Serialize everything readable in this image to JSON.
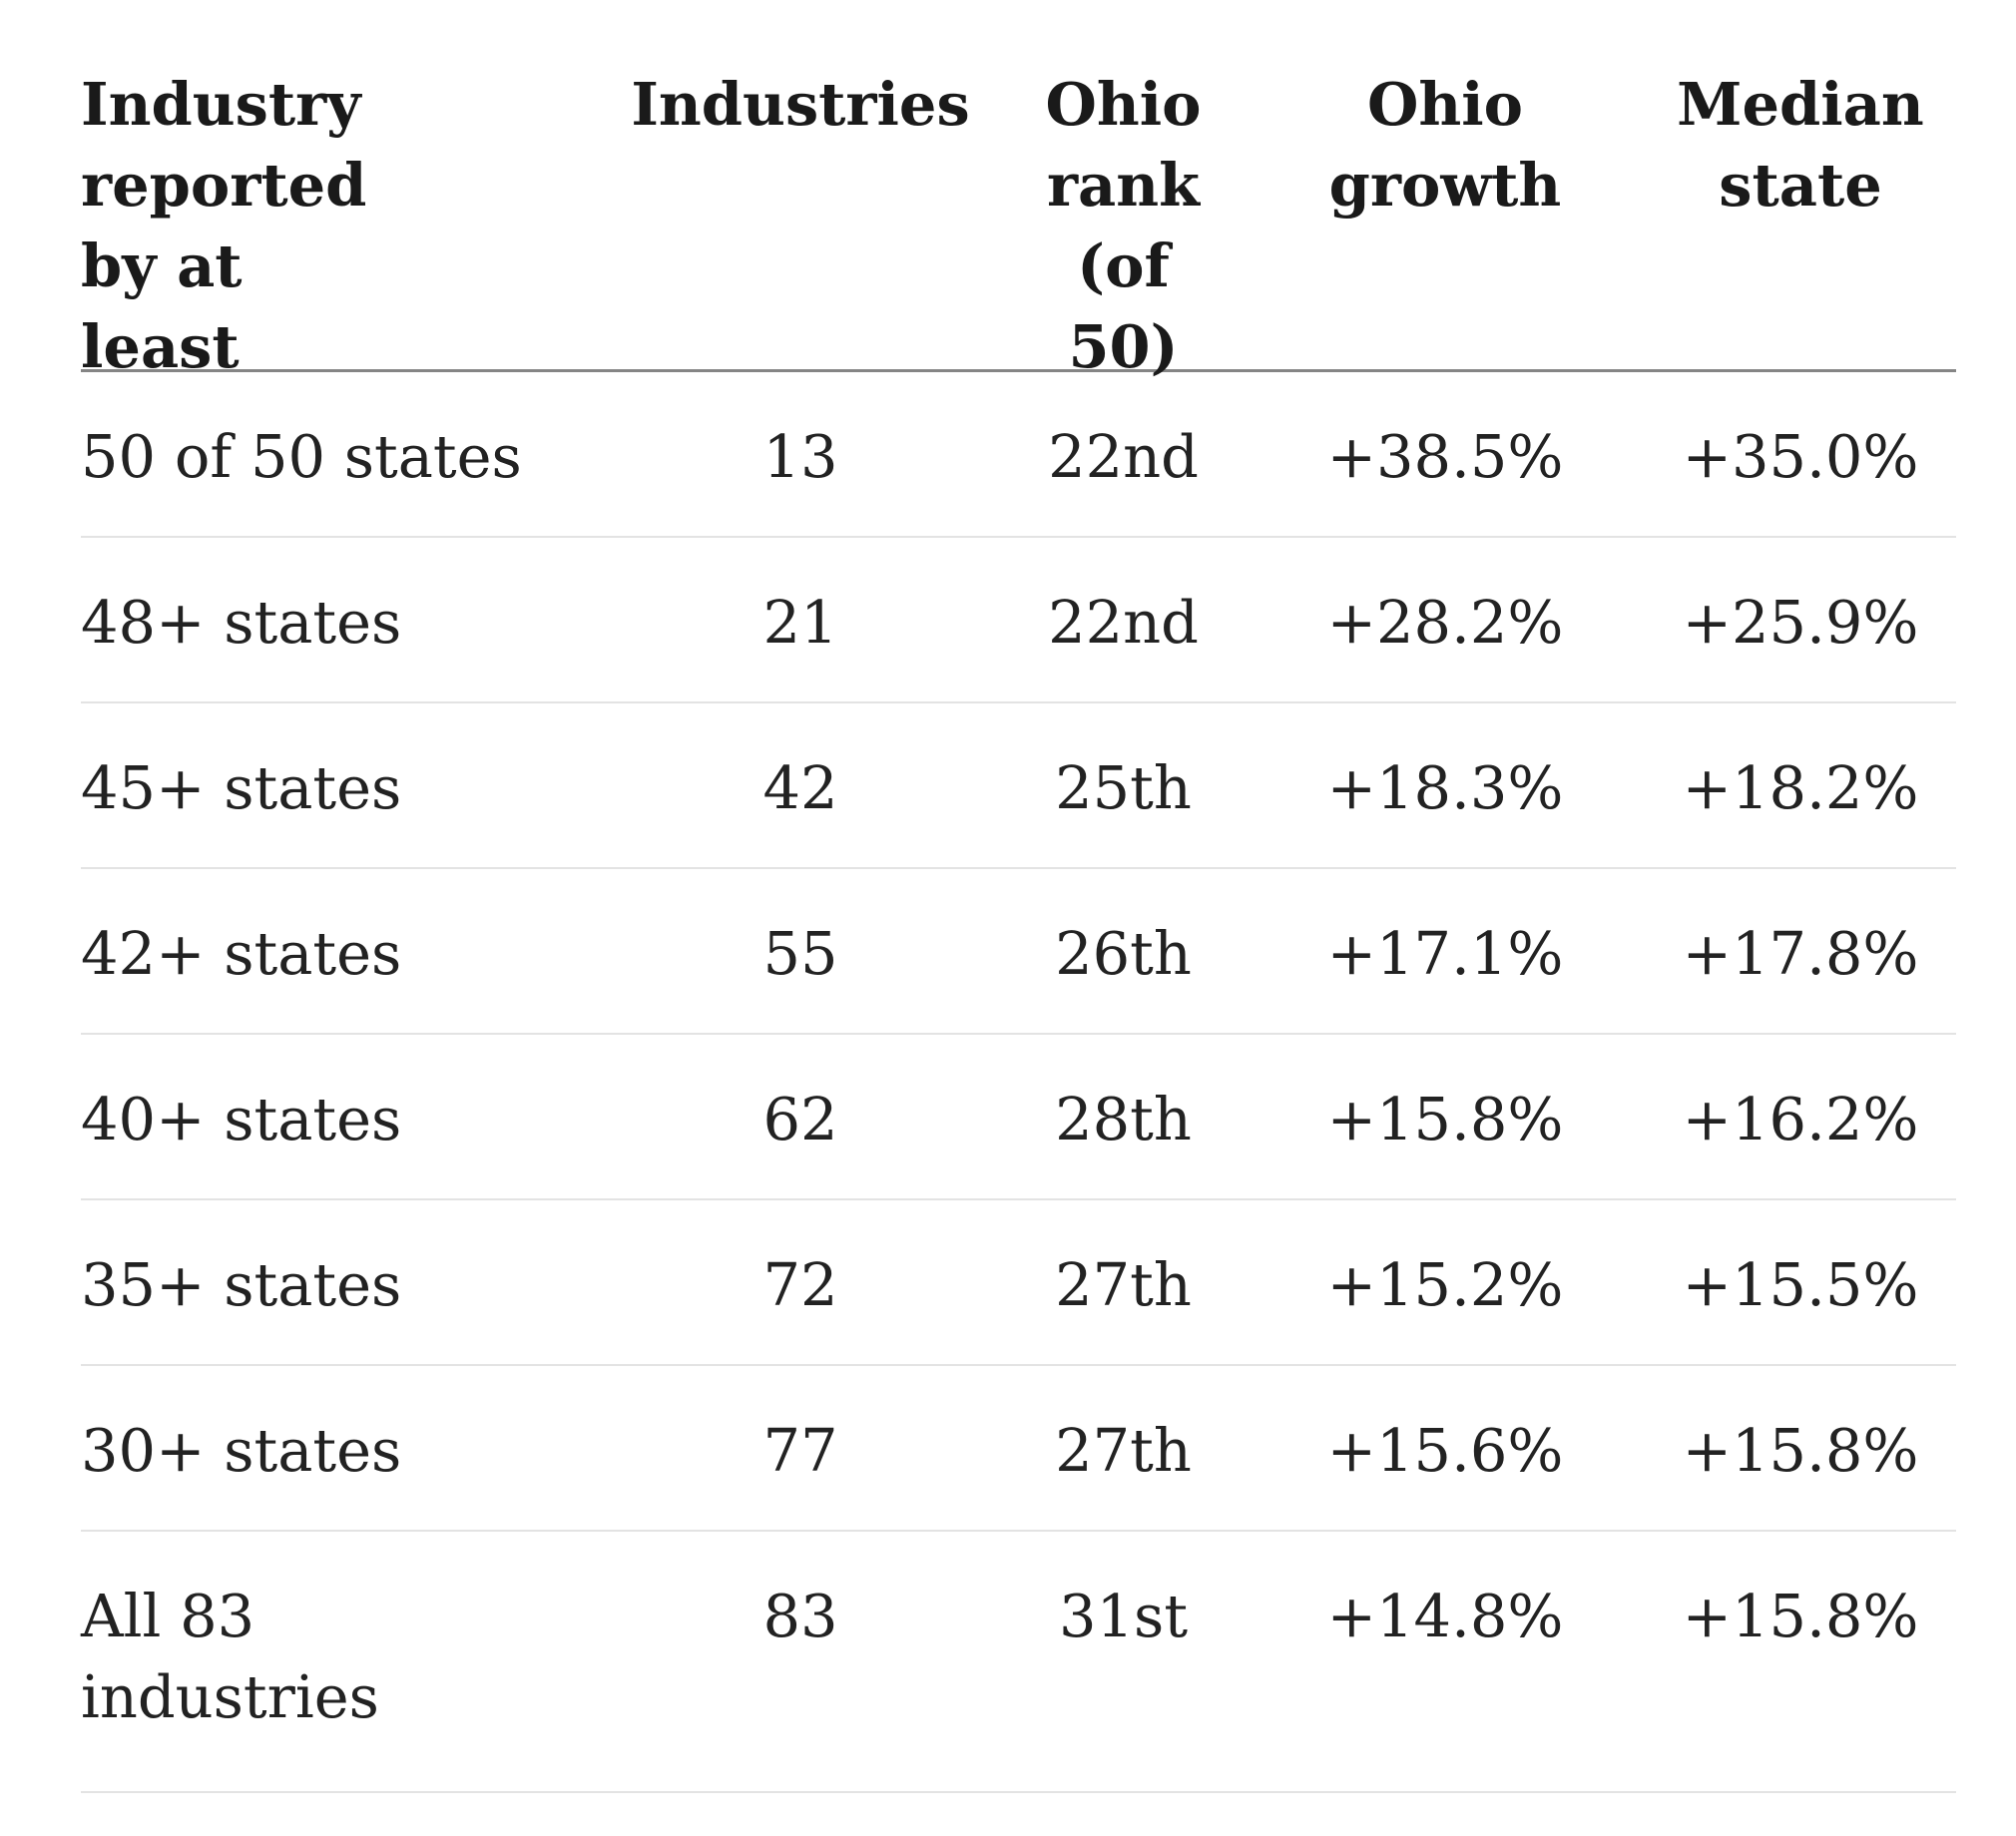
{
  "chart_data": {
    "type": "table",
    "columns": [
      "Industry reported by at least",
      "Industries",
      "Ohio rank (of 50)",
      "Ohio growth",
      "Median state"
    ],
    "rows": [
      [
        "50 of 50 states",
        "13",
        "22nd",
        "+38.5%",
        "+35.0%"
      ],
      [
        "48+ states",
        "21",
        "22nd",
        "+28.2%",
        "+25.9%"
      ],
      [
        "45+ states",
        "42",
        "25th",
        "+18.3%",
        "+18.2%"
      ],
      [
        "42+ states",
        "55",
        "26th",
        "+17.1%",
        "+17.8%"
      ],
      [
        "40+ states",
        "62",
        "28th",
        "+15.8%",
        "+16.2%"
      ],
      [
        "35+ states",
        "72",
        "27th",
        "+15.2%",
        "+15.5%"
      ],
      [
        "30+ states",
        "77",
        "27th",
        "+15.6%",
        "+15.8%"
      ],
      [
        "All 83 industries",
        "83",
        "31st",
        "+14.8%",
        "+15.8%"
      ]
    ]
  }
}
